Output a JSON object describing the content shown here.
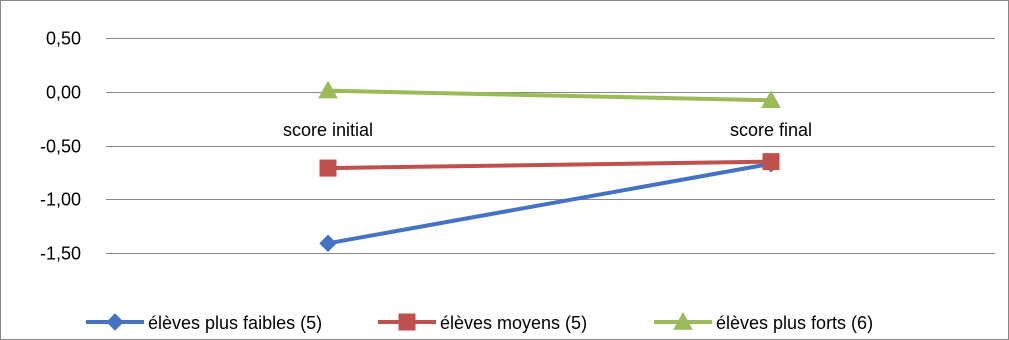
{
  "chart_data": {
    "type": "line",
    "categories": [
      "score initial",
      "score final"
    ],
    "series": [
      {
        "name": "élèves plus faibles (5)",
        "values": [
          -1.41,
          -0.67
        ],
        "color": "#4472C4",
        "marker": "diamond"
      },
      {
        "name": "élèves moyens (5)",
        "values": [
          -0.71,
          -0.65
        ],
        "color": "#C0504D",
        "marker": "square"
      },
      {
        "name": "élèves plus forts (6)",
        "values": [
          0.01,
          -0.08
        ],
        "color": "#9BBB59",
        "marker": "triangle"
      }
    ],
    "y_ticks": [
      "0,50",
      "0,00",
      "-0,50",
      "-1,00",
      "-1,50"
    ],
    "ylim": [
      -1.5,
      0.5
    ],
    "y_step": 0.5,
    "grid": true,
    "gridline_color": "#868686",
    "legend_position": "bottom",
    "category_labels_position": "above zero line",
    "title": "",
    "xlabel": "",
    "ylabel": ""
  }
}
